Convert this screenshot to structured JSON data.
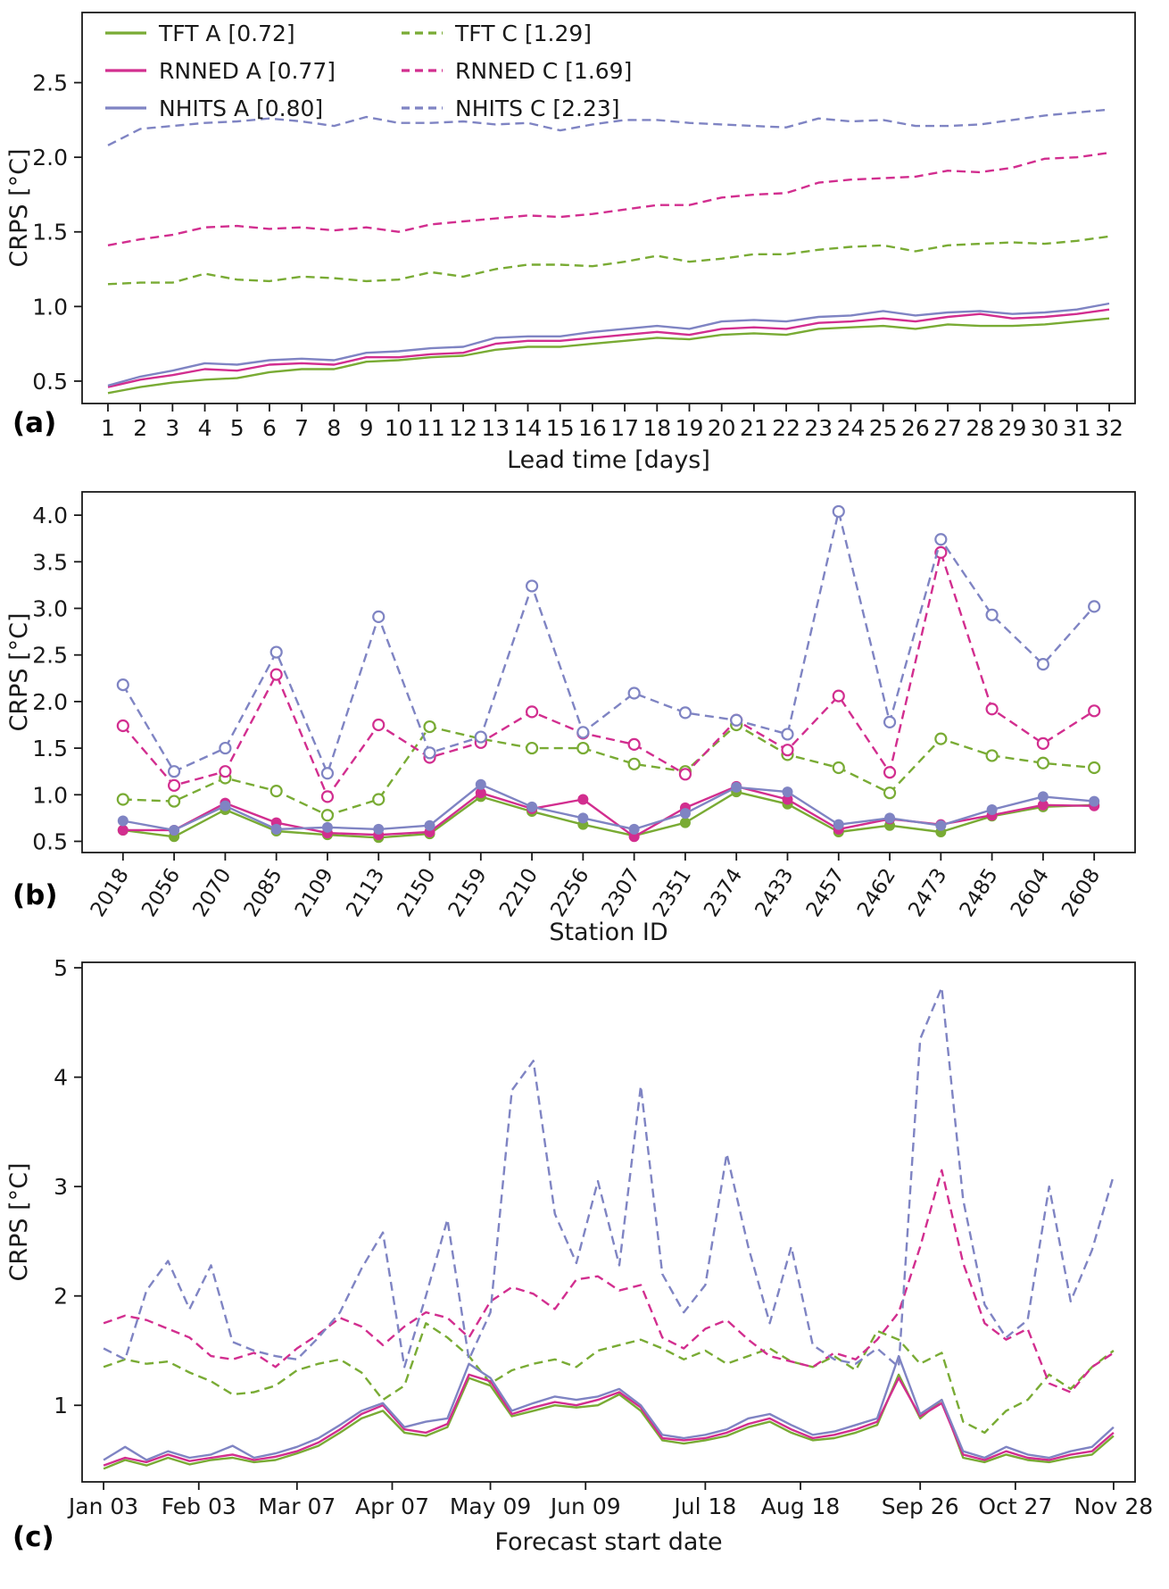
{
  "colors": {
    "green": "#79ab34",
    "magenta": "#d22e8f",
    "purple": "#7f84c3"
  },
  "chart_data": [
    {
      "panel_label": "(a)",
      "type": "line",
      "xlabel": "Lead time [days]",
      "ylabel": "CRPS [°C]",
      "grid": false,
      "xlim": [
        0.2,
        32.8
      ],
      "ylim": [
        0.35,
        2.97
      ],
      "x": [
        1,
        2,
        3,
        4,
        5,
        6,
        7,
        8,
        9,
        10,
        11,
        12,
        13,
        14,
        15,
        16,
        17,
        18,
        19,
        20,
        21,
        22,
        23,
        24,
        25,
        26,
        27,
        28,
        29,
        30,
        31,
        32
      ],
      "xticks": {
        "values": [
          1,
          2,
          3,
          4,
          5,
          6,
          7,
          8,
          9,
          10,
          11,
          12,
          13,
          14,
          15,
          16,
          17,
          18,
          19,
          20,
          21,
          22,
          23,
          24,
          25,
          26,
          27,
          28,
          29,
          30,
          31,
          32
        ],
        "labels": [
          "1",
          "2",
          "3",
          "4",
          "5",
          "6",
          "7",
          "8",
          "9",
          "10",
          "11",
          "12",
          "13",
          "14",
          "15",
          "16",
          "17",
          "18",
          "19",
          "20",
          "21",
          "22",
          "23",
          "24",
          "25",
          "26",
          "27",
          "28",
          "29",
          "30",
          "31",
          "32"
        ]
      },
      "yticks": {
        "values": [
          0.5,
          1.0,
          1.5,
          2.0,
          2.5
        ],
        "labels": [
          "0.5",
          "1.0",
          "1.5",
          "2.0",
          "2.5"
        ]
      },
      "legend": {
        "position": "upper left",
        "columns": [
          [
            0,
            1,
            2
          ],
          [
            3,
            4,
            5
          ]
        ]
      },
      "series": [
        {
          "name": "TFT A [0.72]",
          "color": "green",
          "style": "solid",
          "marker": "none",
          "values": [
            0.42,
            0.46,
            0.49,
            0.51,
            0.52,
            0.56,
            0.58,
            0.58,
            0.63,
            0.64,
            0.66,
            0.67,
            0.71,
            0.73,
            0.73,
            0.75,
            0.77,
            0.79,
            0.78,
            0.81,
            0.82,
            0.81,
            0.85,
            0.86,
            0.87,
            0.85,
            0.88,
            0.87,
            0.87,
            0.88,
            0.9,
            0.92
          ]
        },
        {
          "name": "RNNED A [0.77]",
          "color": "magenta",
          "style": "solid",
          "marker": "none",
          "values": [
            0.46,
            0.51,
            0.54,
            0.58,
            0.57,
            0.61,
            0.62,
            0.61,
            0.66,
            0.66,
            0.68,
            0.69,
            0.75,
            0.77,
            0.77,
            0.79,
            0.81,
            0.83,
            0.81,
            0.85,
            0.86,
            0.85,
            0.89,
            0.9,
            0.92,
            0.9,
            0.93,
            0.95,
            0.92,
            0.93,
            0.95,
            0.98
          ]
        },
        {
          "name": "NHITS A [0.80]",
          "color": "purple",
          "style": "solid",
          "marker": "none",
          "values": [
            0.47,
            0.53,
            0.57,
            0.62,
            0.61,
            0.64,
            0.65,
            0.64,
            0.69,
            0.7,
            0.72,
            0.73,
            0.79,
            0.8,
            0.8,
            0.83,
            0.85,
            0.87,
            0.85,
            0.9,
            0.91,
            0.9,
            0.93,
            0.94,
            0.97,
            0.94,
            0.96,
            0.97,
            0.95,
            0.96,
            0.98,
            1.02
          ]
        },
        {
          "name": "TFT C [1.29]",
          "color": "green",
          "style": "dashed",
          "marker": "none",
          "values": [
            1.15,
            1.16,
            1.16,
            1.22,
            1.18,
            1.17,
            1.2,
            1.19,
            1.17,
            1.18,
            1.23,
            1.2,
            1.25,
            1.28,
            1.28,
            1.27,
            1.3,
            1.34,
            1.3,
            1.32,
            1.35,
            1.35,
            1.38,
            1.4,
            1.41,
            1.37,
            1.41,
            1.42,
            1.43,
            1.42,
            1.44,
            1.47
          ]
        },
        {
          "name": "RNNED C [1.69]",
          "color": "magenta",
          "style": "dashed",
          "marker": "none",
          "values": [
            1.41,
            1.45,
            1.48,
            1.53,
            1.54,
            1.52,
            1.53,
            1.51,
            1.53,
            1.5,
            1.55,
            1.57,
            1.59,
            1.61,
            1.6,
            1.62,
            1.65,
            1.68,
            1.68,
            1.73,
            1.75,
            1.76,
            1.83,
            1.85,
            1.86,
            1.87,
            1.91,
            1.9,
            1.93,
            1.99,
            2.0,
            2.03
          ]
        },
        {
          "name": "NHITS C [2.23]",
          "color": "purple",
          "style": "dashed",
          "marker": "none",
          "values": [
            2.08,
            2.19,
            2.21,
            2.23,
            2.24,
            2.26,
            2.24,
            2.21,
            2.27,
            2.23,
            2.23,
            2.24,
            2.22,
            2.23,
            2.18,
            2.22,
            2.25,
            2.25,
            2.23,
            2.22,
            2.21,
            2.2,
            2.26,
            2.24,
            2.25,
            2.21,
            2.21,
            2.22,
            2.25,
            2.28,
            2.3,
            2.32
          ]
        }
      ]
    },
    {
      "panel_label": "(b)",
      "type": "line",
      "xlabel": "Station ID",
      "ylabel": "CRPS [°C]",
      "grid": false,
      "xtick_rotate": true,
      "xlim": [
        -0.8,
        19.8
      ],
      "ylim": [
        0.38,
        4.25
      ],
      "categories": [
        "2018",
        "2056",
        "2070",
        "2085",
        "2109",
        "2113",
        "2150",
        "2159",
        "2210",
        "2256",
        "2307",
        "2351",
        "2374",
        "2433",
        "2457",
        "2462",
        "2473",
        "2485",
        "2604",
        "2608"
      ],
      "xticks": {
        "values": [
          0,
          1,
          2,
          3,
          4,
          5,
          6,
          7,
          8,
          9,
          10,
          11,
          12,
          13,
          14,
          15,
          16,
          17,
          18,
          19
        ],
        "labels": [
          "2018",
          "2056",
          "2070",
          "2085",
          "2109",
          "2113",
          "2150",
          "2159",
          "2210",
          "2256",
          "2307",
          "2351",
          "2374",
          "2433",
          "2457",
          "2462",
          "2473",
          "2485",
          "2604",
          "2608"
        ]
      },
      "yticks": {
        "values": [
          0.5,
          1.0,
          1.5,
          2.0,
          2.5,
          3.0,
          3.5,
          4.0
        ],
        "labels": [
          "0.5",
          "1.0",
          "1.5",
          "2.0",
          "2.5",
          "3.0",
          "3.5",
          "4.0"
        ]
      },
      "series": [
        {
          "name": "TFT A",
          "color": "green",
          "style": "solid",
          "marker": "filled",
          "values": [
            0.62,
            0.55,
            0.84,
            0.61,
            0.57,
            0.54,
            0.58,
            0.98,
            0.82,
            0.68,
            0.56,
            0.7,
            1.03,
            0.9,
            0.6,
            0.67,
            0.6,
            0.77,
            0.87,
            0.89
          ]
        },
        {
          "name": "RNNED A",
          "color": "magenta",
          "style": "solid",
          "marker": "filled",
          "values": [
            0.62,
            0.62,
            0.91,
            0.7,
            0.59,
            0.57,
            0.6,
            1.02,
            0.85,
            0.95,
            0.55,
            0.86,
            1.09,
            0.95,
            0.63,
            0.74,
            0.68,
            0.78,
            0.89,
            0.88
          ]
        },
        {
          "name": "NHITS A",
          "color": "purple",
          "style": "solid",
          "marker": "filled",
          "values": [
            0.72,
            0.62,
            0.88,
            0.63,
            0.65,
            0.63,
            0.67,
            1.11,
            0.87,
            0.75,
            0.63,
            0.8,
            1.08,
            1.03,
            0.68,
            0.75,
            0.67,
            0.84,
            0.98,
            0.93
          ]
        },
        {
          "name": "TFT C",
          "color": "green",
          "style": "dashed",
          "marker": "open",
          "values": [
            0.95,
            0.93,
            1.18,
            1.04,
            0.78,
            0.95,
            1.73,
            1.6,
            1.5,
            1.5,
            1.33,
            1.25,
            1.75,
            1.43,
            1.29,
            1.02,
            1.6,
            1.42,
            1.34,
            1.29
          ]
        },
        {
          "name": "RNNED C",
          "color": "magenta",
          "style": "dashed",
          "marker": "open",
          "values": [
            1.74,
            1.1,
            1.25,
            2.29,
            0.98,
            1.75,
            1.4,
            1.56,
            1.89,
            1.66,
            1.54,
            1.22,
            1.8,
            1.48,
            2.06,
            1.24,
            3.6,
            1.92,
            1.55,
            1.9
          ]
        },
        {
          "name": "NHITS C",
          "color": "purple",
          "style": "dashed",
          "marker": "open",
          "values": [
            2.18,
            1.25,
            1.5,
            2.53,
            1.23,
            2.91,
            1.45,
            1.62,
            3.24,
            1.67,
            2.09,
            1.88,
            1.8,
            1.65,
            4.04,
            1.78,
            3.74,
            2.93,
            2.4,
            3.02
          ]
        }
      ]
    },
    {
      "panel_label": "(c)",
      "type": "line",
      "xlabel": "Forecast start date",
      "ylabel": "CRPS [°C]",
      "grid": false,
      "xlim": [
        -1,
        48
      ],
      "ylim": [
        0.3,
        5.05
      ],
      "xticks": {
        "values": [
          0,
          4.43,
          9,
          13.43,
          18,
          22.43,
          28,
          32.43,
          38,
          42.43,
          47
        ],
        "labels": [
          "Jan 03",
          "Feb 03",
          "Mar 07",
          "Apr 07",
          "May 09",
          "Jun 09",
          "Jul 18",
          "Aug 18",
          "Sep 26",
          "Oct 27",
          "Nov 28"
        ]
      },
      "yticks": {
        "values": [
          1,
          2,
          3,
          4,
          5
        ],
        "labels": [
          "1",
          "2",
          "3",
          "4",
          "5"
        ]
      },
      "series": [
        {
          "name": "TFT A",
          "color": "green",
          "style": "solid",
          "marker": "none",
          "values": [
            0.42,
            0.5,
            0.45,
            0.52,
            0.46,
            0.5,
            0.52,
            0.48,
            0.5,
            0.56,
            0.63,
            0.75,
            0.88,
            0.95,
            0.75,
            0.72,
            0.8,
            1.25,
            1.18,
            0.9,
            0.95,
            1.0,
            0.98,
            1.0,
            1.1,
            0.95,
            0.68,
            0.65,
            0.68,
            0.72,
            0.8,
            0.85,
            0.75,
            0.68,
            0.7,
            0.75,
            0.82,
            1.28,
            0.88,
            1.05,
            0.52,
            0.48,
            0.55,
            0.5,
            0.48,
            0.52,
            0.55,
            0.72
          ]
        },
        {
          "name": "RNNED A",
          "color": "magenta",
          "style": "solid",
          "marker": "none",
          "values": [
            0.45,
            0.52,
            0.48,
            0.55,
            0.49,
            0.52,
            0.55,
            0.5,
            0.53,
            0.58,
            0.66,
            0.78,
            0.92,
            1.0,
            0.78,
            0.75,
            0.83,
            1.28,
            1.22,
            0.92,
            0.98,
            1.03,
            1.0,
            1.05,
            1.12,
            0.98,
            0.7,
            0.68,
            0.7,
            0.75,
            0.83,
            0.88,
            0.78,
            0.7,
            0.73,
            0.78,
            0.85,
            1.25,
            0.9,
            1.02,
            0.55,
            0.5,
            0.58,
            0.52,
            0.5,
            0.55,
            0.58,
            0.75
          ]
        },
        {
          "name": "NHITS A",
          "color": "purple",
          "style": "solid",
          "marker": "none",
          "values": [
            0.5,
            0.62,
            0.5,
            0.58,
            0.52,
            0.55,
            0.63,
            0.52,
            0.56,
            0.62,
            0.7,
            0.82,
            0.95,
            1.02,
            0.8,
            0.85,
            0.88,
            1.38,
            1.25,
            0.95,
            1.02,
            1.08,
            1.05,
            1.08,
            1.15,
            1.0,
            0.73,
            0.7,
            0.73,
            0.78,
            0.88,
            0.92,
            0.82,
            0.73,
            0.76,
            0.82,
            0.88,
            1.45,
            0.92,
            1.05,
            0.58,
            0.52,
            0.62,
            0.55,
            0.52,
            0.58,
            0.62,
            0.8
          ]
        },
        {
          "name": "TFT C",
          "color": "green",
          "style": "dashed",
          "marker": "none",
          "values": [
            1.35,
            1.42,
            1.38,
            1.4,
            1.3,
            1.22,
            1.1,
            1.12,
            1.18,
            1.32,
            1.38,
            1.42,
            1.3,
            1.05,
            1.18,
            1.75,
            1.62,
            1.45,
            1.2,
            1.32,
            1.38,
            1.42,
            1.35,
            1.5,
            1.55,
            1.6,
            1.52,
            1.42,
            1.5,
            1.38,
            1.45,
            1.52,
            1.4,
            1.35,
            1.45,
            1.32,
            1.68,
            1.6,
            1.38,
            1.48,
            0.85,
            0.75,
            0.95,
            1.05,
            1.28,
            1.15,
            1.35,
            1.5
          ]
        },
        {
          "name": "RNNED C",
          "color": "magenta",
          "style": "dashed",
          "marker": "none",
          "values": [
            1.75,
            1.82,
            1.78,
            1.7,
            1.62,
            1.45,
            1.42,
            1.48,
            1.35,
            1.52,
            1.65,
            1.8,
            1.72,
            1.55,
            1.72,
            1.85,
            1.8,
            1.62,
            1.95,
            2.08,
            2.02,
            1.88,
            2.15,
            2.18,
            2.05,
            2.1,
            1.62,
            1.52,
            1.7,
            1.78,
            1.6,
            1.45,
            1.4,
            1.35,
            1.48,
            1.42,
            1.6,
            1.85,
            2.45,
            3.15,
            2.3,
            1.75,
            1.6,
            1.7,
            1.2,
            1.12,
            1.35,
            1.48
          ]
        },
        {
          "name": "NHITS C",
          "color": "purple",
          "style": "dashed",
          "marker": "none",
          "values": [
            1.52,
            1.42,
            2.05,
            2.32,
            1.88,
            2.28,
            1.58,
            1.5,
            1.45,
            1.42,
            1.62,
            1.85,
            2.25,
            2.58,
            1.35,
            2.0,
            2.7,
            1.42,
            1.85,
            3.88,
            4.15,
            2.75,
            2.3,
            3.05,
            2.28,
            3.92,
            2.2,
            1.85,
            2.1,
            3.3,
            2.45,
            1.75,
            2.45,
            1.55,
            1.42,
            1.38,
            1.52,
            1.35,
            4.35,
            4.82,
            2.88,
            1.92,
            1.62,
            1.78,
            3.0,
            1.95,
            2.42,
            3.1
          ]
        }
      ]
    }
  ]
}
